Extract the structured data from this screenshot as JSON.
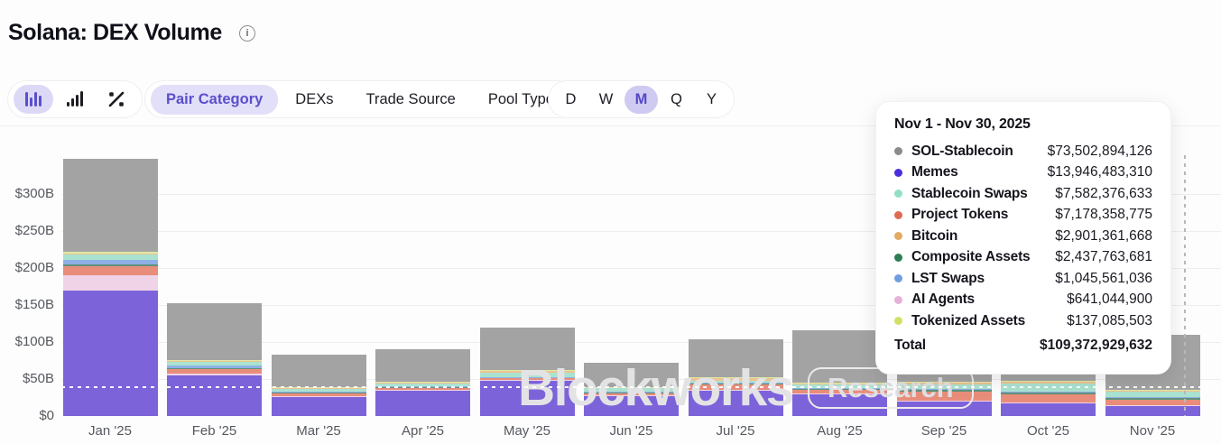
{
  "header": {
    "title": "Solana: DEX Volume"
  },
  "toolbar": {
    "chart_types": [
      {
        "name": "stacked-bar-chart",
        "selected": true
      },
      {
        "name": "grouped-bar-chart",
        "selected": false
      },
      {
        "name": "percent-change",
        "selected": false
      }
    ],
    "tabs": [
      {
        "label": "Pair Category",
        "selected": true
      },
      {
        "label": "DEXs",
        "selected": false
      },
      {
        "label": "Trade Source",
        "selected": false
      },
      {
        "label": "Pool Type",
        "selected": false
      }
    ],
    "ranges": [
      {
        "label": "D",
        "selected": false
      },
      {
        "label": "W",
        "selected": false
      },
      {
        "label": "M",
        "selected": true
      },
      {
        "label": "Q",
        "selected": false
      },
      {
        "label": "Y",
        "selected": false
      }
    ],
    "accent_color": "#5a4fcd",
    "accent_pill_color": "#dcd9f6"
  },
  "watermark": {
    "brand": "Blockworks",
    "badge": "Research"
  },
  "tooltip": {
    "title": "Nov 1 - Nov 30, 2025",
    "rows": [
      {
        "label": "SOL-Stablecoin",
        "value": "$73,502,894,126",
        "color": "#8b8b8b"
      },
      {
        "label": "Memes",
        "value": "$13,946,483,310",
        "color": "#4a2ede"
      },
      {
        "label": "Stablecoin Swaps",
        "value": "$7,582,376,633",
        "color": "#92dfc8"
      },
      {
        "label": "Project Tokens",
        "value": "$7,178,358,775",
        "color": "#df6a54"
      },
      {
        "label": "Bitcoin",
        "value": "$2,901,361,668",
        "color": "#e3aa62"
      },
      {
        "label": "Composite Assets",
        "value": "$2,437,763,681",
        "color": "#2f7d53"
      },
      {
        "label": "LST Swaps",
        "value": "$1,045,561,036",
        "color": "#6f9ddf"
      },
      {
        "label": "AI Agents",
        "value": "$641,044,900",
        "color": "#e6b2d9"
      },
      {
        "label": "Tokenized Assets",
        "value": "$137,085,503",
        "color": "#d2df68"
      }
    ],
    "total_label": "Total",
    "total_value": "$109,372,929,632"
  },
  "chart_data": {
    "type": "bar",
    "stacked": true,
    "title": "Solana: DEX Volume",
    "unit": "$B",
    "categories": [
      "Jan '25",
      "Feb '25",
      "Mar '25",
      "Apr '25",
      "May '25",
      "Jun '25",
      "Jul '25",
      "Aug '25",
      "Sep '25",
      "Oct '25",
      "Nov '25"
    ],
    "y_ticks": [
      {
        "label": "$0",
        "value": 0
      },
      {
        "label": "$50B",
        "value": 50
      },
      {
        "label": "$100B",
        "value": 100
      },
      {
        "label": "$150B",
        "value": 150
      },
      {
        "label": "$200B",
        "value": 200
      },
      {
        "label": "$250B",
        "value": 250
      },
      {
        "label": "$300B",
        "value": 300
      }
    ],
    "ylim": [
      0,
      355
    ],
    "grid": true,
    "reference_line_value": 38,
    "crosshair_category": "Nov '25",
    "series": [
      {
        "name": "Memes",
        "bar_color": "#7c63da",
        "values": [
          170,
          55,
          26,
          35,
          48,
          28,
          35,
          30,
          20,
          18,
          13.9
        ]
      },
      {
        "name": "AI Agents",
        "bar_color": "#f0d3e6",
        "values": [
          20,
          2,
          1,
          0.5,
          0.5,
          0.5,
          0.5,
          0.5,
          0.5,
          0.5,
          0.64
        ]
      },
      {
        "name": "Project Tokens",
        "bar_color": "#e98d7b",
        "values": [
          13,
          7,
          4,
          3,
          3,
          3,
          8,
          5,
          13,
          11,
          7.18
        ]
      },
      {
        "name": "Composite Assets",
        "bar_color": "#60927c",
        "values": [
          2,
          1,
          1,
          0.5,
          0.5,
          0.5,
          0.5,
          1,
          2,
          2,
          2.44
        ]
      },
      {
        "name": "LST Swaps",
        "bar_color": "#8fb0e5",
        "values": [
          6,
          3,
          1,
          1,
          1,
          1,
          1,
          1,
          1,
          2,
          1.05
        ]
      },
      {
        "name": "Stablecoin Swaps",
        "bar_color": "#aae2d0",
        "values": [
          7,
          6,
          4,
          4,
          6,
          5,
          3,
          5,
          6,
          10,
          7.58
        ]
      },
      {
        "name": "Bitcoin",
        "bar_color": "#edc391",
        "values": [
          2,
          1,
          1,
          2,
          2,
          1,
          3,
          2,
          3,
          3,
          2.9
        ]
      },
      {
        "name": "Tokenized Assets",
        "bar_color": "#dfe9a4",
        "values": [
          2,
          1,
          0.5,
          0.5,
          1,
          0.5,
          1,
          0.5,
          0.5,
          0.5,
          0.14
        ]
      },
      {
        "name": "SOL-Stablecoin",
        "bar_color": "#a3a3a3",
        "values": [
          125,
          77,
          44,
          43.5,
          57,
          32.5,
          52,
          71,
          54,
          59,
          73.5
        ]
      }
    ]
  }
}
